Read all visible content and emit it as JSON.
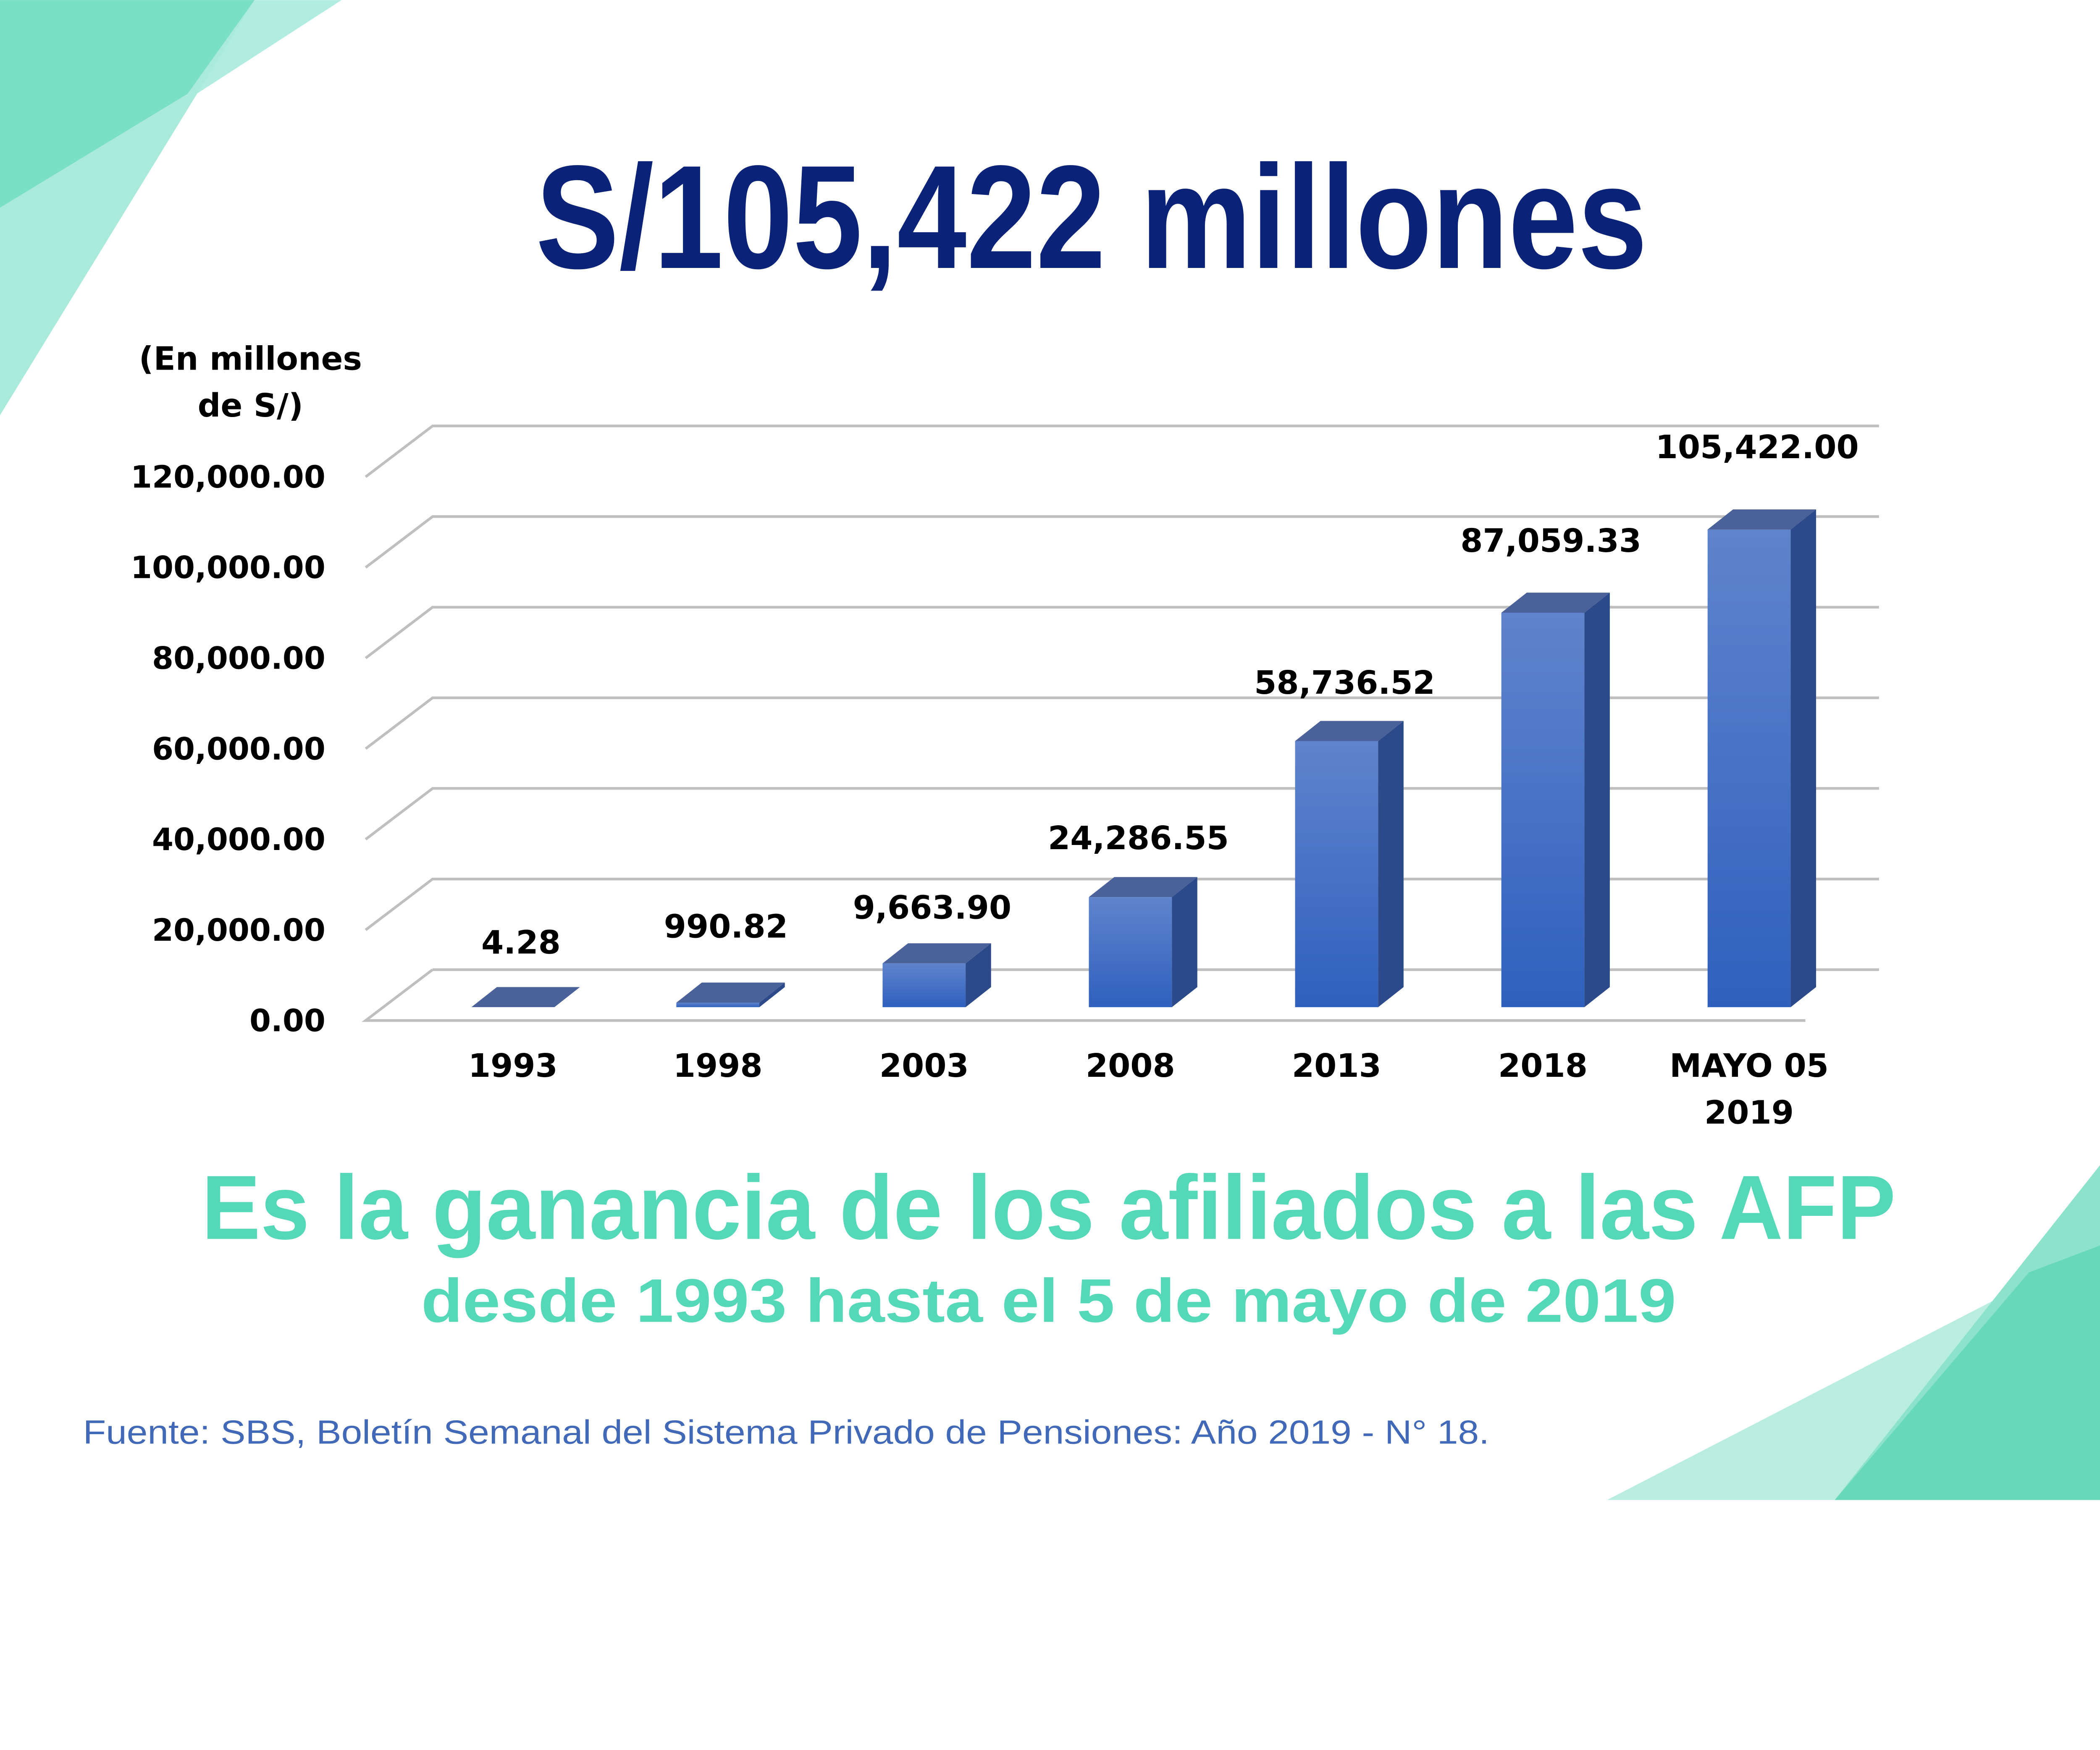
{
  "headline": "S/105,422 millones",
  "unit_label": [
    "(En millones",
    "de S/)"
  ],
  "subtitle_main": "Es la ganancia de los afiliados a las AFP",
  "subtitle_secondary": "desde 1993 hasta el 5 de mayo de 2019",
  "source": "Fuente: SBS, Boletín Semanal del Sistema Privado de Pensiones: Año 2019 - N° 18.",
  "colors": {
    "headline": "#0a2379",
    "accent_green": "#55d8b7",
    "bar_front": "#3d6fcc",
    "bar_top": "#4a6299",
    "bar_side": "#2c4a8a",
    "source_text": "#4169b8"
  },
  "chart_data": {
    "type": "bar",
    "style": "3d-column",
    "title": "",
    "ylabel": "(En millones de S/)",
    "xlabel": "",
    "categories": [
      "1993",
      "1998",
      "2003",
      "2008",
      "2013",
      "2018",
      "MAYO 05 2019"
    ],
    "category_lines": [
      [
        "1993"
      ],
      [
        "1998"
      ],
      [
        "2003"
      ],
      [
        "2008"
      ],
      [
        "2013"
      ],
      [
        "2018"
      ],
      [
        "MAYO 05",
        "2019"
      ]
    ],
    "values": [
      4.28,
      990.82,
      9663.9,
      24286.55,
      58736.52,
      87059.33,
      105422.0
    ],
    "data_labels": [
      "4.28",
      "990.82",
      "9,663.90",
      "24,286.55",
      "58,736.52",
      "87,059.33",
      "105,422.00"
    ],
    "ylim": [
      0,
      120000
    ],
    "yticks": [
      0,
      20000,
      40000,
      60000,
      80000,
      100000,
      120000
    ],
    "ytick_labels": [
      "0.00",
      "20,000.00",
      "40,000.00",
      "60,000.00",
      "80,000.00",
      "100,000.00",
      "120,000.00"
    ],
    "grid": true,
    "legend": "none"
  }
}
